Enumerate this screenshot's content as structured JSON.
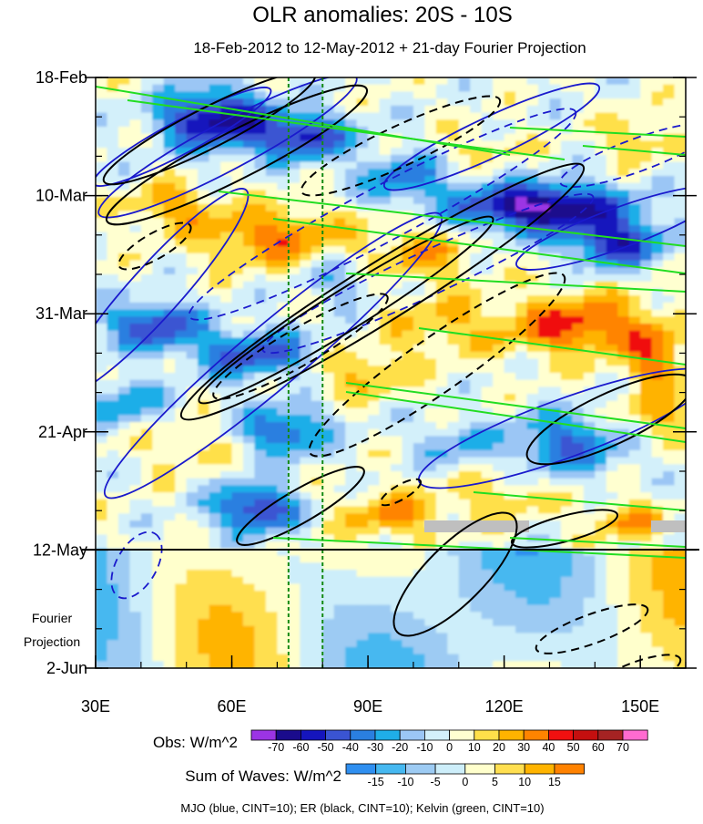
{
  "chart_data": {
    "type": "heatmap",
    "title": "OLR anomalies: 20S - 10S",
    "subtitle": "18-Feb-2012 to 12-May-2012 + 21-day Fourier Projection",
    "x_ticks": [
      "30E",
      "60E",
      "90E",
      "120E",
      "150E"
    ],
    "x_tick_values": [
      30,
      60,
      90,
      120,
      150
    ],
    "x_range": [
      30,
      160
    ],
    "y_ticks": [
      "18-Feb",
      "10-Mar",
      "31-Mar",
      "21-Apr",
      "12-May",
      "2-Jun"
    ],
    "y_tick_days": [
      0,
      21,
      42,
      63,
      84,
      105
    ],
    "y_range_days": [
      0,
      105
    ],
    "observation_end_day": 84,
    "projection_label_line1": "Fourier",
    "projection_label_line2": "Projection",
    "reference_lines_lon": [
      72.5,
      80
    ],
    "obs_colorbar": {
      "label": "Obs: W/m^2",
      "levels": [
        "-70",
        "-60",
        "-50",
        "-40",
        "-30",
        "-20",
        "-10",
        "0",
        "10",
        "20",
        "30",
        "40",
        "50",
        "60",
        "70"
      ],
      "colors": [
        "#9b34e4",
        "#1a0b8c",
        "#1515bd",
        "#3a54d2",
        "#2a7fe0",
        "#1faee8",
        "#9bc6f5",
        "#d3f0fa",
        "#ffffd0",
        "#ffe04a",
        "#ffb300",
        "#ff8400",
        "#f01010",
        "#c40f0f",
        "#a52323",
        "#ff6bd0"
      ]
    },
    "waves_colorbar": {
      "label": "Sum of Waves: W/m^2",
      "levels": [
        "-15",
        "-10",
        "-5",
        "0",
        "5",
        "10",
        "15"
      ],
      "colors": [
        "#2f8ff0",
        "#46b8f0",
        "#9dcbf3",
        "#cdeefa",
        "#ffffcc",
        "#ffdf50",
        "#ffb400",
        "#ff8200"
      ]
    },
    "legend_text": "MJO (blue, CINT=10); ER (black, CINT=10); Kelvin (green, CINT=10)",
    "wave_colors": {
      "mjo": "#1a1acc",
      "er": "#000000",
      "kelvin": "#22dd22"
    }
  }
}
